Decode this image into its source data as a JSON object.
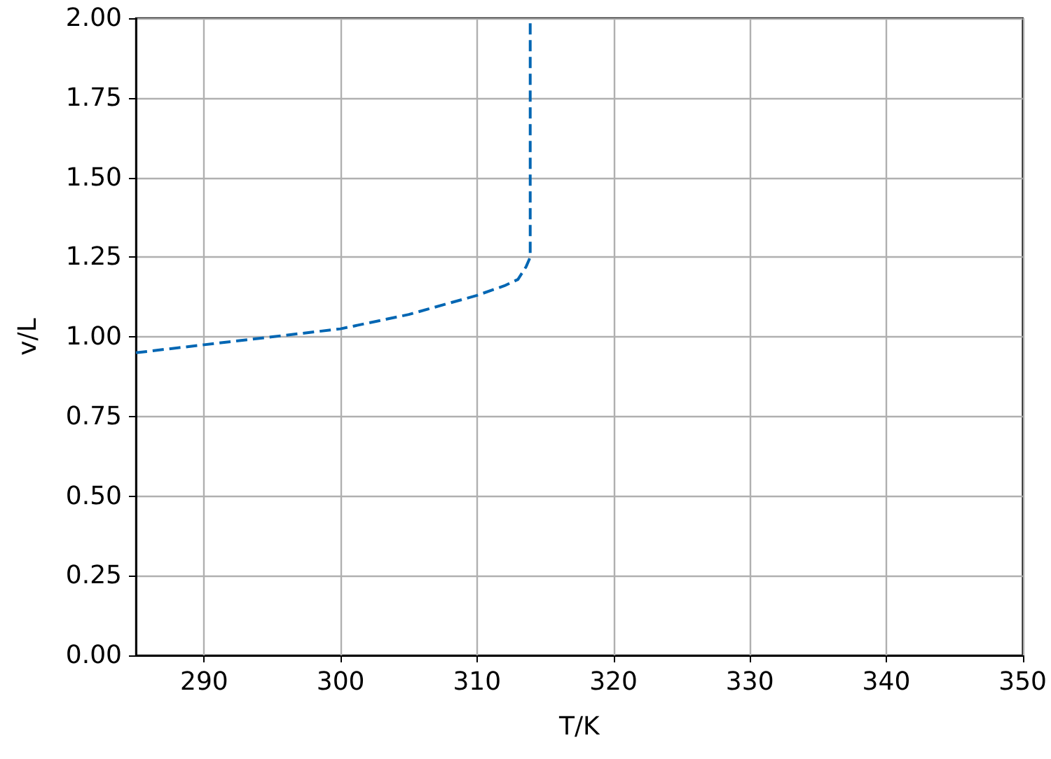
{
  "chart_data": {
    "type": "line",
    "xlabel": "T/K",
    "ylabel": "v/L",
    "series": [
      {
        "color": "#0066b3",
        "x": [
          285,
          290,
          295,
          300,
          305,
          310,
          312,
          313,
          313.6,
          313.9,
          313.9
        ],
        "values": [
          0.95,
          0.975,
          1.0,
          1.025,
          1.07,
          1.13,
          1.16,
          1.18,
          1.22,
          1.25,
          2.0
        ]
      }
    ],
    "xlim": [
      285,
      350
    ],
    "xticks": [
      290,
      300,
      310,
      320,
      330,
      340,
      350
    ],
    "ylim": [
      0,
      2
    ],
    "yticks": [
      {
        "value": 0,
        "label": "0.00"
      },
      {
        "value": 0.25,
        "label": "0.25"
      },
      {
        "value": 0.5,
        "label": "0.50"
      },
      {
        "value": 0.75,
        "label": "0.75"
      },
      {
        "value": 1,
        "label": "1.00"
      },
      {
        "value": 1.25,
        "label": "1.25"
      },
      {
        "value": 1.5,
        "label": "1.50"
      },
      {
        "value": 1.75,
        "label": "1.75"
      },
      {
        "value": 2,
        "label": "2.00"
      }
    ],
    "grid": true,
    "line_style": "dashed",
    "marker": "none"
  }
}
